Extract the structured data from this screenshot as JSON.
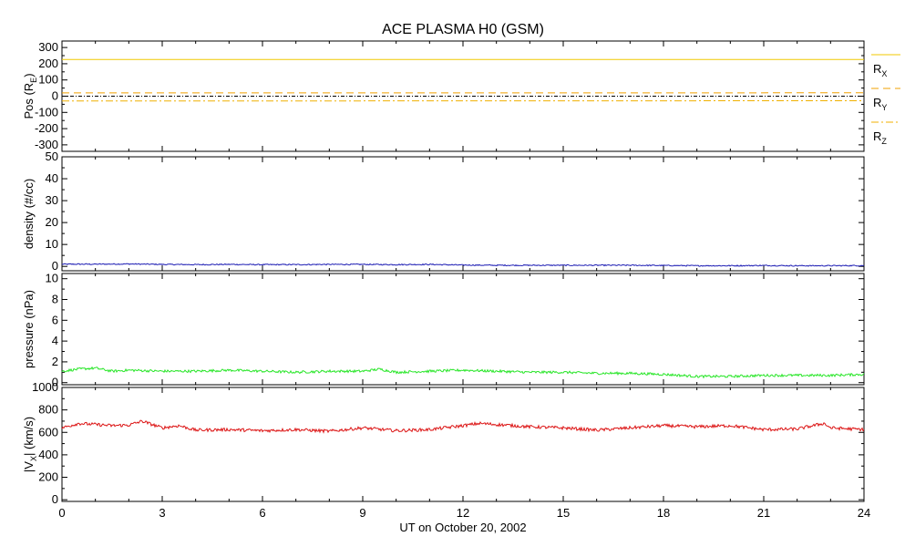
{
  "title": "ACE PLASMA H0 (GSM)",
  "xlabel": "UT on October 20, 2002",
  "x_ticks": [
    "0",
    "3",
    "6",
    "9",
    "12",
    "15",
    "18",
    "21",
    "24"
  ],
  "chart_data": [
    {
      "type": "line",
      "title": "ACE PLASMA H0 (GSM)",
      "ylabel_main": "Pos (R",
      "ylabel_sub": "E",
      "ylabel_end": ")",
      "xlim": [
        0,
        24
      ],
      "ylim": [
        -340,
        340
      ],
      "y_ticks": [
        -300,
        -200,
        -100,
        0,
        100,
        200,
        300
      ],
      "y_tick_labels": [
        "-300",
        "-200",
        "-100",
        "0",
        "100",
        "200",
        "300"
      ],
      "zero_line": true,
      "legend_position": "right",
      "series": [
        {
          "name": "R",
          "name_sub": "X",
          "color": "#f0c800",
          "style": "solid",
          "x": [
            0,
            24
          ],
          "y": [
            226,
            226
          ]
        },
        {
          "name": "R",
          "name_sub": "Y",
          "color": "#f0a000",
          "style": "dashed",
          "x": [
            0,
            24
          ],
          "y": [
            20,
            21
          ]
        },
        {
          "name": "R",
          "name_sub": "Z",
          "color": "#f0b000",
          "style": "dashdot",
          "x": [
            0,
            24
          ],
          "y": [
            -30,
            -28
          ]
        }
      ]
    },
    {
      "type": "line",
      "ylabel_main": "density (#/cc)",
      "xlim": [
        0,
        24
      ],
      "ylim": [
        -2,
        50
      ],
      "y_ticks": [
        0,
        10,
        20,
        30,
        40,
        50
      ],
      "y_tick_labels": [
        "0",
        "10",
        "20",
        "30",
        "40",
        "50"
      ],
      "series": [
        {
          "color": "#1e1eb4",
          "x": [
            0,
            1,
            2,
            3,
            4,
            5,
            6,
            7,
            8,
            9,
            10,
            11,
            12,
            13,
            14,
            15,
            16,
            17,
            18,
            19,
            20,
            21,
            22,
            23,
            24
          ],
          "y": [
            1.0,
            1.0,
            1.1,
            0.9,
            0.8,
            0.9,
            0.8,
            0.8,
            0.9,
            0.9,
            0.8,
            0.9,
            0.6,
            0.5,
            0.5,
            0.5,
            0.5,
            0.5,
            0.4,
            0.3,
            0.3,
            0.4,
            0.3,
            0.3,
            0.4
          ],
          "noise": 0.25
        }
      ]
    },
    {
      "type": "line",
      "ylabel_main": "pressure (nPa)",
      "xlim": [
        0,
        24
      ],
      "ylim": [
        -0.2,
        10.5
      ],
      "y_ticks": [
        0,
        2,
        4,
        6,
        8,
        10
      ],
      "y_tick_labels": [
        "0",
        "2",
        "4",
        "6",
        "8",
        "10"
      ],
      "series": [
        {
          "color": "#28e628",
          "x": [
            0,
            0.5,
            1,
            1.5,
            2,
            3,
            4,
            5,
            6,
            7,
            8,
            9,
            9.5,
            10,
            11,
            12,
            13,
            14,
            15,
            16,
            17,
            18,
            19,
            20,
            21,
            22,
            23,
            24
          ],
          "y": [
            1.1,
            1.3,
            1.4,
            1.1,
            1.2,
            1.1,
            1.1,
            1.2,
            1.1,
            1.0,
            1.1,
            1.1,
            1.3,
            1.0,
            1.1,
            1.2,
            1.1,
            1.0,
            1.0,
            0.9,
            0.9,
            0.8,
            0.6,
            0.6,
            0.7,
            0.7,
            0.7,
            0.8
          ],
          "noise": 0.12
        }
      ]
    },
    {
      "type": "line",
      "ylabel_main": "|V",
      "ylabel_sub": "X",
      "ylabel_end": "| (km/s)",
      "xlim": [
        0,
        24
      ],
      "ylim": [
        -15,
        1000
      ],
      "y_ticks": [
        0,
        200,
        400,
        600,
        800,
        1000
      ],
      "y_tick_labels": [
        "0",
        "200",
        "400",
        "600",
        "800",
        "1000"
      ],
      "series": [
        {
          "color": "#dc1414",
          "x": [
            0,
            0.5,
            1,
            1.5,
            2,
            2.4,
            3,
            3.5,
            4,
            5,
            6,
            7,
            8,
            9,
            10,
            11,
            12,
            12.5,
            13,
            14,
            15,
            16,
            17,
            18,
            19,
            20,
            21,
            22,
            22.8,
            23,
            24
          ],
          "y": [
            640,
            680,
            670,
            660,
            665,
            700,
            640,
            660,
            620,
            625,
            615,
            625,
            610,
            640,
            615,
            625,
            660,
            680,
            670,
            650,
            640,
            620,
            640,
            660,
            650,
            660,
            625,
            630,
            680,
            640,
            625
          ],
          "noise": 14
        }
      ]
    }
  ]
}
